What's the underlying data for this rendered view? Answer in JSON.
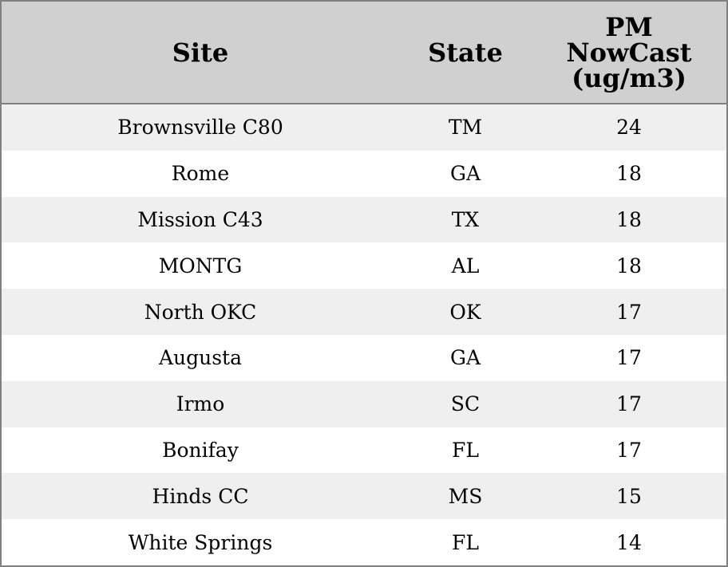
{
  "table": {
    "header": [
      "Site",
      "State",
      "PM NowCast (ug/m3)"
    ],
    "rows": [
      [
        "Brownsville C80",
        "TM",
        24
      ],
      [
        "Rome",
        "GA",
        18
      ],
      [
        "Mission C43",
        "TX",
        18
      ],
      [
        "MONTG",
        "AL",
        18
      ],
      [
        "North OKC",
        "OK",
        17
      ],
      [
        "Augusta",
        "GA",
        17
      ],
      [
        "Irmo",
        "SC",
        17
      ],
      [
        "Bonifay",
        "FL",
        17
      ],
      [
        "Hinds CC",
        "MS",
        15
      ],
      [
        "White Springs",
        "FL",
        14
      ]
    ]
  }
}
